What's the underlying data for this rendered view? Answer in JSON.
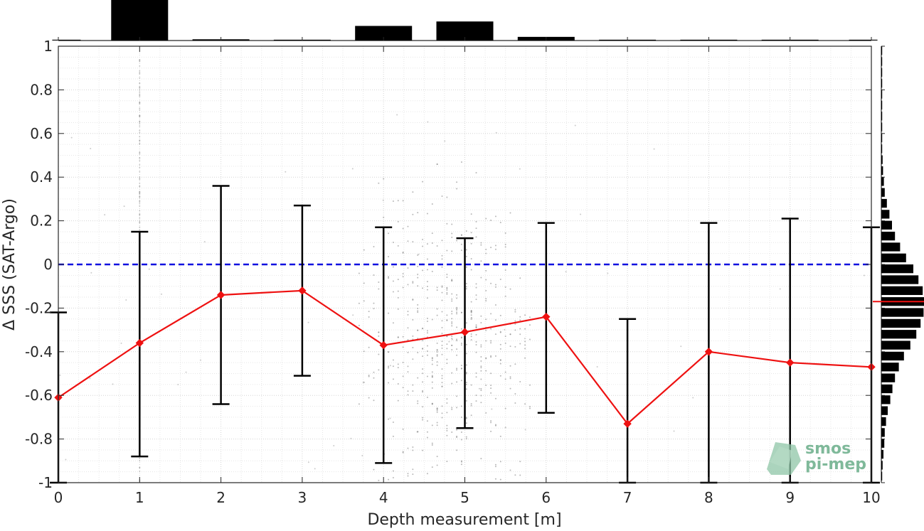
{
  "chart_data": {
    "type": "line",
    "xlabel": "Depth measurement [m]",
    "ylabel": "Δ SSS (SAT-Argo)",
    "xlim": [
      0,
      10
    ],
    "ylim": [
      -1,
      1
    ],
    "x_ticks": [
      0,
      1,
      2,
      3,
      4,
      5,
      6,
      7,
      8,
      9,
      10
    ],
    "y_ticks": [
      1,
      0.8,
      0.6,
      0.4,
      0.2,
      0,
      -0.2,
      -0.4,
      -0.6,
      -0.8,
      -1
    ],
    "y_tick_labels": [
      "1",
      "0.8",
      "0.6",
      "0.4",
      "0.2",
      "0",
      "-0.2",
      "-0.4",
      "-0.6",
      "-0.8",
      "-1"
    ],
    "grid": true,
    "reference_line": {
      "y": 0,
      "style": "dashed",
      "color": "#1010e0"
    },
    "series": [
      {
        "x": [
          0,
          1,
          2,
          3,
          4,
          5,
          6,
          7,
          8,
          9,
          10
        ],
        "mean": [
          -0.61,
          -0.36,
          -0.14,
          -0.12,
          -0.37,
          -0.31,
          -0.24,
          -0.73,
          -0.4,
          -0.45,
          -0.47
        ],
        "upper": [
          -0.22,
          0.15,
          0.36,
          0.27,
          0.17,
          0.12,
          0.19,
          -0.25,
          0.19,
          0.21,
          0.17
        ],
        "lower": [
          -1.0,
          -0.88,
          -0.64,
          -0.51,
          -0.91,
          -0.75,
          -0.68,
          -1.0,
          -1.0,
          -1.0,
          -1.0
        ],
        "color": "#ee1111"
      }
    ],
    "top_histogram": {
      "bin_centers": [
        0.1,
        1,
        2,
        3,
        4,
        5,
        6,
        7,
        8,
        9,
        9.9
      ],
      "heights": [
        0.02,
        1.0,
        0.03,
        0.02,
        0.36,
        0.47,
        0.09,
        0.02,
        0.02,
        0.02,
        0.02
      ]
    },
    "right_histogram": {
      "bin_centers": [
        -0.97,
        -0.92,
        -0.87,
        -0.82,
        -0.77,
        -0.72,
        -0.67,
        -0.62,
        -0.57,
        -0.52,
        -0.47,
        -0.42,
        -0.37,
        -0.32,
        -0.27,
        -0.22,
        -0.17,
        -0.12,
        -0.07,
        -0.02,
        0.03,
        0.08,
        0.13,
        0.18,
        0.23,
        0.28,
        0.33,
        0.38,
        0.43,
        0.48,
        0.53,
        0.58,
        0.63,
        0.68,
        0.73,
        0.78,
        0.83,
        0.88,
        0.93,
        0.98
      ],
      "heights": [
        0.02,
        0.03,
        0.05,
        0.07,
        0.08,
        0.11,
        0.15,
        0.21,
        0.26,
        0.32,
        0.41,
        0.53,
        0.68,
        0.82,
        0.92,
        0.99,
        1.0,
        0.97,
        0.87,
        0.75,
        0.58,
        0.44,
        0.32,
        0.25,
        0.19,
        0.13,
        0.08,
        0.06,
        0.04,
        0.03,
        0.02,
        0.02,
        0.02,
        0.02,
        0.02,
        0.02,
        0.02,
        0.02,
        0.02,
        0.02
      ],
      "median_marker": -0.17
    }
  },
  "logo": {
    "line1": "smos",
    "line2": "pi-mep"
  },
  "colors": {
    "mean_line": "#ee1111",
    "zero_line": "#1010e0",
    "bars": "#000000",
    "scatter": "#808080"
  }
}
